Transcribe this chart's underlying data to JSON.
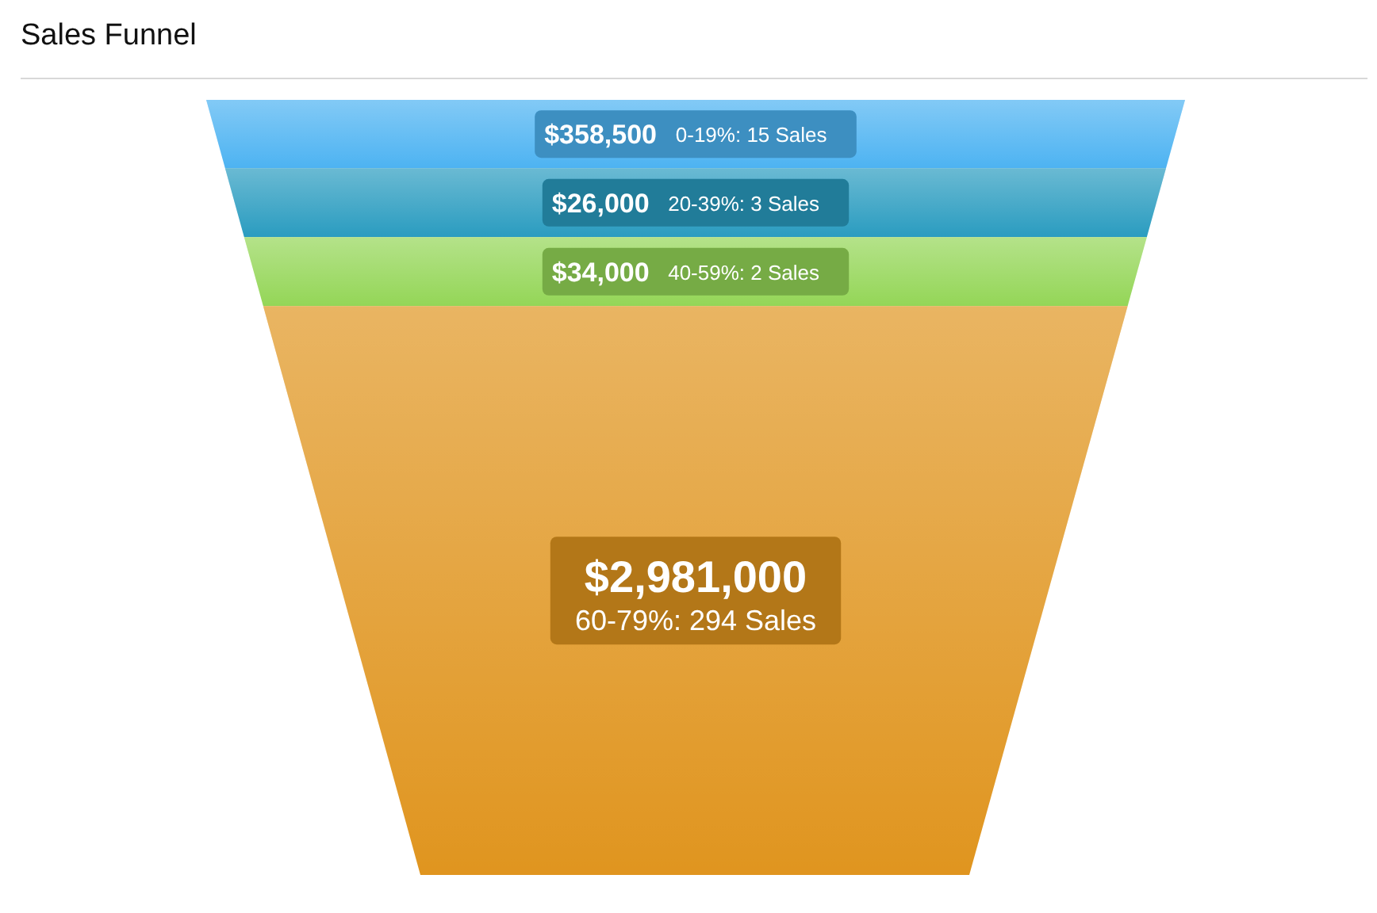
{
  "chart_data": {
    "type": "other",
    "title": "Sales Funnel",
    "categories": [
      "0-19%: 15 Sales",
      "20-39%: 3 Sales",
      "40-59%: 2 Sales",
      "60-79%: 294 Sales"
    ],
    "values": [
      358500,
      26000,
      34000,
      2981000
    ],
    "value_labels": [
      "$358,500",
      "$26,000",
      "$34,000",
      "$2,981,000"
    ],
    "colors": [
      "#4db3f2",
      "#2a9cc0",
      "#94d657",
      "#e0951f"
    ]
  }
}
